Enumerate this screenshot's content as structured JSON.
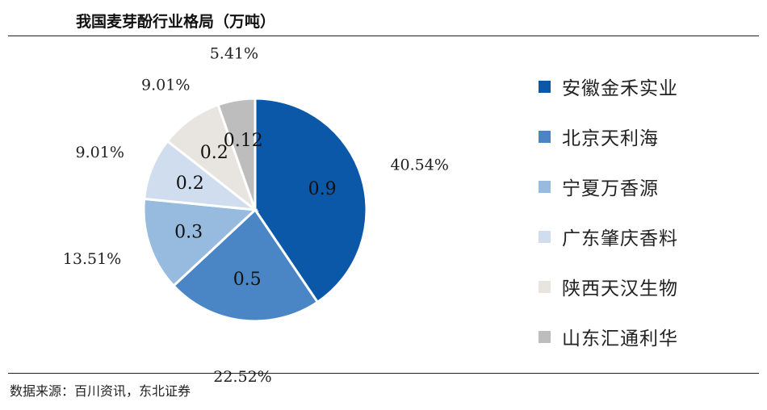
{
  "title": "我国麦芽酚行业格局（万吨）",
  "source": "数据来源：百川资讯，东北证券",
  "chart_data": {
    "type": "pie",
    "title": "我国麦芽酚行业格局（万吨）",
    "unit": "万吨",
    "legend_position": "right",
    "slices": [
      {
        "name": "安徽金禾实业",
        "value": 0.9,
        "value_label": "0.9",
        "percent_label": "40.54%",
        "color": "#0B57A8"
      },
      {
        "name": "北京天利海",
        "value": 0.5,
        "value_label": "0.5",
        "percent_label": "22.52%",
        "color": "#4A86C5"
      },
      {
        "name": "宁夏万香源",
        "value": 0.3,
        "value_label": "0.3",
        "percent_label": "13.51%",
        "color": "#96BBDF"
      },
      {
        "name": "广东肇庆香料",
        "value": 0.2,
        "value_label": "0.2",
        "percent_label": "9.01%",
        "color": "#CFDDEE"
      },
      {
        "name": "陕西天汉生物",
        "value": 0.2,
        "value_label": "0.2",
        "percent_label": "9.01%",
        "color": "#E8E5E0"
      },
      {
        "name": "山东汇通利华",
        "value": 0.12,
        "value_label": "0.12",
        "percent_label": "5.41%",
        "color": "#BDBDBD"
      }
    ]
  }
}
